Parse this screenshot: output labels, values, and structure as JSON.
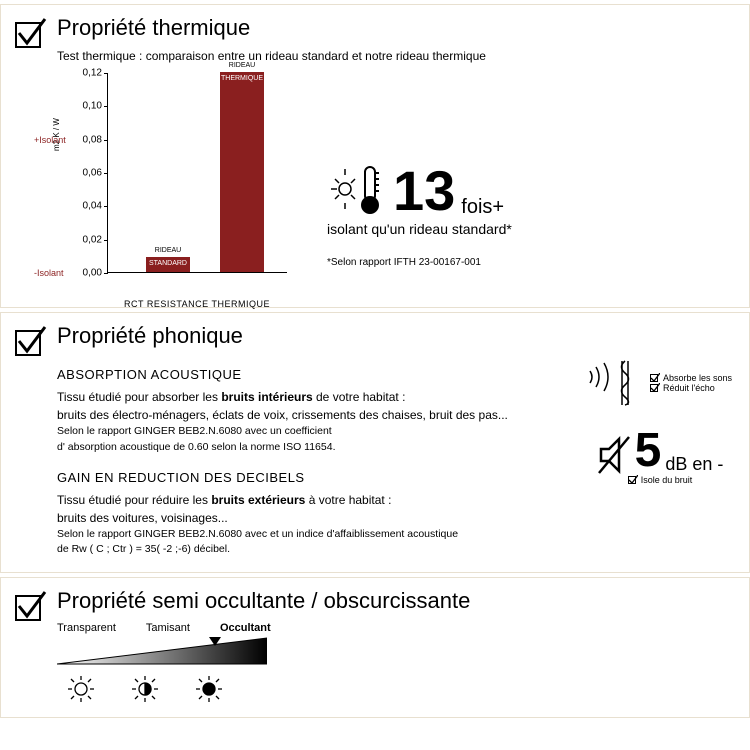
{
  "panel1": {
    "title": "Propriété thermique",
    "subtitle": "Test thermique : comparaison entre un rideau standard et notre rideau thermique",
    "chart": {
      "type": "bar",
      "y_label": "m2 K / W",
      "x_label": "RCT RESISTANCE THERMIQUE",
      "ylim_top": 0.12,
      "ticks": [
        {
          "v": 0.12,
          "l": "0,12"
        },
        {
          "v": 0.1,
          "l": "0,10"
        },
        {
          "v": 0.08,
          "l": "0,08"
        },
        {
          "v": 0.06,
          "l": "0,06"
        },
        {
          "v": 0.04,
          "l": "0,04"
        },
        {
          "v": 0.02,
          "l": "0,02"
        },
        {
          "v": 0.0,
          "l": "0,00"
        }
      ],
      "plus_isolant": "+Isolant",
      "minus_isolant": "-Isolant",
      "bars": [
        {
          "label_top": "RIDEAU",
          "label_in": "STANDARD",
          "value": 0.009,
          "color": "#8a1f1f"
        },
        {
          "label_top": "RIDEAU",
          "label_in": "THERMIQUE",
          "value": 0.12,
          "color": "#8a1f1f"
        }
      ]
    },
    "claim": {
      "number": "13",
      "fois": "fois",
      "plus": "+",
      "desc": "isolant qu'un rideau standard*"
    },
    "footnote": "*Selon rapport IFTH 23-00167-001"
  },
  "panel2": {
    "title": "Propriété phonique",
    "sec1_head": "ABSORPTION ACOUSTIQUE",
    "sec1_l1a": "Tissu étudié pour absorber les ",
    "sec1_l1b": "bruits intérieurs",
    "sec1_l1c": " de votre habitat :",
    "sec1_l2": "bruits des électro-ménagers, éclats de voix, crissements des chaises, bruit des pas...",
    "sec1_l3": "Selon le rapport GINGER BEB2.N.6080 avec un coefficient",
    "sec1_l4": "d' absorption acoustique de 0.60 selon la norme ISO 11654.",
    "sec2_head": "GAIN EN REDUCTION DES DECIBELS",
    "sec2_l1a": "Tissu étudié pour réduire les ",
    "sec2_l1b": "bruits extérieurs",
    "sec2_l1c": " à votre habitat :",
    "sec2_l2": "bruits des voitures, voisinages...",
    "sec2_l3": "Selon le rapport GINGER BEB2.N.6080 avec et un indice d'affaiblissement acoustique",
    "sec2_l4": "de Rw ( C ; Ctr ) = 35( -2 ;-6) décibel.",
    "ck1": "Absorbe les sons",
    "ck2": "Réduit l'écho",
    "claim_num": "5",
    "claim_unit": "dB en -",
    "ck3": "Isole du bruit"
  },
  "panel3": {
    "title": "Propriété semi occultante / obscurcissante",
    "scale": [
      "Transparent",
      "Tamisant",
      "Occultant"
    ]
  }
}
